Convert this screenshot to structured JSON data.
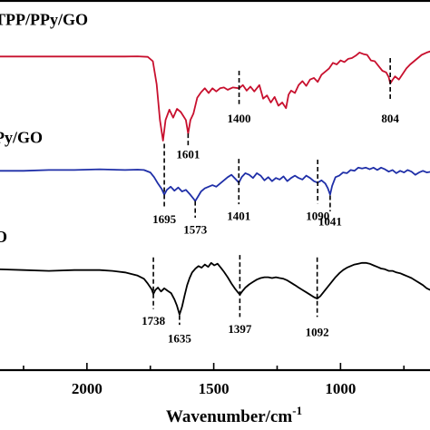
{
  "chart_data": {
    "type": "line",
    "xlabel": "Wavenumber/cm",
    "xlabel_superscript": "-1",
    "x_reversed": true,
    "xlim": [
      2350,
      640
    ],
    "x_ticks": [
      2000,
      1500,
      1000
    ],
    "x_tick_labels": [
      "2000",
      "1500",
      "1000"
    ],
    "series": [
      {
        "name": "TPP/PPy/GO",
        "color": "#c8102e",
        "points": [
          [
            2350,
            -1.0
          ],
          [
            2200,
            -1.0
          ],
          [
            2100,
            -1.0
          ],
          [
            2000,
            -1.0
          ],
          [
            1900,
            -1.0
          ],
          [
            1850,
            -1.0
          ],
          [
            1800,
            -0.98
          ],
          [
            1760,
            -1.05
          ],
          [
            1740,
            -1.6
          ],
          [
            1725,
            -4.5
          ],
          [
            1712,
            -9
          ],
          [
            1700,
            -11.6
          ],
          [
            1690,
            -9
          ],
          [
            1675,
            -7.7
          ],
          [
            1660,
            -8.7
          ],
          [
            1645,
            -7.6
          ],
          [
            1630,
            -8.0
          ],
          [
            1620,
            -8.5
          ],
          [
            1610,
            -9.0
          ],
          [
            1601,
            -10.7
          ],
          [
            1592,
            -9.0
          ],
          [
            1580,
            -8.2
          ],
          [
            1565,
            -6.2
          ],
          [
            1550,
            -5.5
          ],
          [
            1535,
            -5.0
          ],
          [
            1520,
            -5.6
          ],
          [
            1505,
            -5.0
          ],
          [
            1490,
            -5.4
          ],
          [
            1475,
            -5.0
          ],
          [
            1460,
            -4.9
          ],
          [
            1445,
            -5.2
          ],
          [
            1425,
            -4.9
          ],
          [
            1400,
            -5.0
          ],
          [
            1385,
            -4.6
          ],
          [
            1370,
            -5.3
          ],
          [
            1355,
            -4.8
          ],
          [
            1340,
            -5.4
          ],
          [
            1320,
            -4.6
          ],
          [
            1305,
            -6.3
          ],
          [
            1290,
            -5.9
          ],
          [
            1275,
            -6.8
          ],
          [
            1260,
            -6.1
          ],
          [
            1245,
            -7.2
          ],
          [
            1230,
            -6.8
          ],
          [
            1215,
            -7.5
          ],
          [
            1205,
            -5.8
          ],
          [
            1195,
            -5.3
          ],
          [
            1180,
            -5.6
          ],
          [
            1165,
            -4.6
          ],
          [
            1150,
            -4.1
          ],
          [
            1135,
            -4.7
          ],
          [
            1120,
            -3.9
          ],
          [
            1105,
            -3.7
          ],
          [
            1090,
            -4.2
          ],
          [
            1075,
            -3.3
          ],
          [
            1060,
            -2.9
          ],
          [
            1045,
            -2.5
          ],
          [
            1030,
            -1.8
          ],
          [
            1015,
            -2.0
          ],
          [
            1000,
            -1.5
          ],
          [
            985,
            -1.7
          ],
          [
            970,
            -1.3
          ],
          [
            955,
            -1.2
          ],
          [
            940,
            -0.9
          ],
          [
            925,
            -0.5
          ],
          [
            910,
            -0.7
          ],
          [
            895,
            -0.8
          ],
          [
            880,
            -1.5
          ],
          [
            865,
            -1.6
          ],
          [
            850,
            -2.2
          ],
          [
            835,
            -2.8
          ],
          [
            820,
            -3.0
          ],
          [
            810,
            -3.6
          ],
          [
            804,
            -4.4
          ],
          [
            796,
            -4.0
          ],
          [
            785,
            -3.5
          ],
          [
            770,
            -3.9
          ],
          [
            755,
            -3.2
          ],
          [
            740,
            -2.5
          ],
          [
            725,
            -2.0
          ],
          [
            710,
            -1.6
          ],
          [
            695,
            -1.2
          ],
          [
            680,
            -0.8
          ],
          [
            660,
            -0.5
          ],
          [
            640,
            -0.3
          ]
        ]
      },
      {
        "name": "PPy/GO",
        "color": "#1f2fa8",
        "points": [
          [
            2350,
            -15.4
          ],
          [
            2250,
            -15.4
          ],
          [
            2150,
            -15.3
          ],
          [
            2050,
            -15.3
          ],
          [
            1950,
            -15.2
          ],
          [
            1850,
            -15.3
          ],
          [
            1800,
            -15.25
          ],
          [
            1775,
            -15.3
          ],
          [
            1750,
            -15.6
          ],
          [
            1735,
            -16.2
          ],
          [
            1720,
            -17.0
          ],
          [
            1705,
            -17.7
          ],
          [
            1695,
            -18.4
          ],
          [
            1685,
            -17.8
          ],
          [
            1670,
            -17.4
          ],
          [
            1655,
            -17.9
          ],
          [
            1640,
            -17.5
          ],
          [
            1625,
            -18.0
          ],
          [
            1610,
            -17.8
          ],
          [
            1595,
            -18.3
          ],
          [
            1580,
            -18.9
          ],
          [
            1573,
            -19.2
          ],
          [
            1565,
            -18.8
          ],
          [
            1550,
            -18.0
          ],
          [
            1535,
            -17.6
          ],
          [
            1520,
            -17.4
          ],
          [
            1505,
            -17.2
          ],
          [
            1490,
            -17.4
          ],
          [
            1475,
            -17.0
          ],
          [
            1460,
            -16.6
          ],
          [
            1445,
            -16.2
          ],
          [
            1430,
            -15.9
          ],
          [
            1415,
            -16.4
          ],
          [
            1401,
            -16.9
          ],
          [
            1390,
            -16.2
          ],
          [
            1375,
            -15.7
          ],
          [
            1360,
            -15.9
          ],
          [
            1345,
            -16.3
          ],
          [
            1330,
            -15.7
          ],
          [
            1315,
            -16.0
          ],
          [
            1300,
            -16.6
          ],
          [
            1285,
            -16.2
          ],
          [
            1270,
            -16.7
          ],
          [
            1255,
            -16.3
          ],
          [
            1240,
            -16.5
          ],
          [
            1225,
            -16.1
          ],
          [
            1210,
            -16.7
          ],
          [
            1195,
            -16.3
          ],
          [
            1180,
            -16.0
          ],
          [
            1165,
            -16.3
          ],
          [
            1150,
            -16.5
          ],
          [
            1135,
            -16.0
          ],
          [
            1120,
            -16.3
          ],
          [
            1105,
            -16.7
          ],
          [
            1090,
            -16.9
          ],
          [
            1075,
            -16.6
          ],
          [
            1060,
            -17.0
          ],
          [
            1050,
            -17.6
          ],
          [
            1041,
            -18.4
          ],
          [
            1033,
            -17.3
          ],
          [
            1020,
            -16.2
          ],
          [
            1005,
            -16.0
          ],
          [
            990,
            -15.6
          ],
          [
            975,
            -15.7
          ],
          [
            960,
            -15.3
          ],
          [
            945,
            -15.4
          ],
          [
            930,
            -15.0
          ],
          [
            915,
            -15.1
          ],
          [
            900,
            -15.0
          ],
          [
            885,
            -15.2
          ],
          [
            870,
            -15.0
          ],
          [
            855,
            -15.3
          ],
          [
            840,
            -15.0
          ],
          [
            825,
            -15.2
          ],
          [
            810,
            -15.5
          ],
          [
            795,
            -15.3
          ],
          [
            780,
            -15.7
          ],
          [
            765,
            -15.4
          ],
          [
            750,
            -15.6
          ],
          [
            735,
            -15.3
          ],
          [
            720,
            -15.5
          ],
          [
            705,
            -15.9
          ],
          [
            690,
            -15.6
          ],
          [
            675,
            -15.4
          ],
          [
            660,
            -15.6
          ],
          [
            640,
            -15.5
          ]
        ]
      },
      {
        "name": "GO",
        "color": "#000000",
        "points": [
          [
            2350,
            -27.8
          ],
          [
            2250,
            -27.9
          ],
          [
            2150,
            -28.0
          ],
          [
            2050,
            -27.9
          ],
          [
            1950,
            -27.9
          ],
          [
            1900,
            -28.0
          ],
          [
            1850,
            -28.2
          ],
          [
            1800,
            -28.6
          ],
          [
            1775,
            -29.0
          ],
          [
            1760,
            -29.6
          ],
          [
            1745,
            -30.3
          ],
          [
            1738,
            -30.9
          ],
          [
            1730,
            -30.4
          ],
          [
            1720,
            -30.1
          ],
          [
            1708,
            -30.6
          ],
          [
            1695,
            -30.2
          ],
          [
            1682,
            -30.5
          ],
          [
            1668,
            -30.8
          ],
          [
            1655,
            -31.6
          ],
          [
            1645,
            -32.4
          ],
          [
            1635,
            -33.5
          ],
          [
            1625,
            -32.5
          ],
          [
            1615,
            -31.1
          ],
          [
            1605,
            -29.8
          ],
          [
            1595,
            -28.9
          ],
          [
            1585,
            -28.2
          ],
          [
            1572,
            -27.7
          ],
          [
            1560,
            -27.4
          ],
          [
            1548,
            -27.6
          ],
          [
            1535,
            -27.2
          ],
          [
            1522,
            -27.5
          ],
          [
            1510,
            -27.0
          ],
          [
            1498,
            -27.3
          ],
          [
            1485,
            -27.1
          ],
          [
            1472,
            -27.6
          ],
          [
            1460,
            -28.1
          ],
          [
            1445,
            -28.8
          ],
          [
            1430,
            -29.6
          ],
          [
            1415,
            -30.3
          ],
          [
            1405,
            -30.7
          ],
          [
            1397,
            -31.0
          ],
          [
            1388,
            -30.6
          ],
          [
            1375,
            -30.1
          ],
          [
            1360,
            -29.7
          ],
          [
            1345,
            -29.4
          ],
          [
            1330,
            -29.1
          ],
          [
            1315,
            -28.9
          ],
          [
            1300,
            -28.8
          ],
          [
            1285,
            -28.8
          ],
          [
            1270,
            -28.9
          ],
          [
            1255,
            -28.8
          ],
          [
            1240,
            -28.9
          ],
          [
            1225,
            -29.0
          ],
          [
            1210,
            -29.2
          ],
          [
            1195,
            -29.5
          ],
          [
            1180,
            -29.8
          ],
          [
            1165,
            -30.1
          ],
          [
            1150,
            -30.4
          ],
          [
            1135,
            -30.7
          ],
          [
            1120,
            -31.0
          ],
          [
            1105,
            -31.3
          ],
          [
            1092,
            -31.5
          ],
          [
            1080,
            -31.2
          ],
          [
            1065,
            -30.6
          ],
          [
            1050,
            -30.0
          ],
          [
            1035,
            -29.4
          ],
          [
            1020,
            -28.8
          ],
          [
            1005,
            -28.3
          ],
          [
            990,
            -27.9
          ],
          [
            975,
            -27.6
          ],
          [
            960,
            -27.4
          ],
          [
            945,
            -27.2
          ],
          [
            930,
            -27.1
          ],
          [
            915,
            -27.0
          ],
          [
            900,
            -27.0
          ],
          [
            885,
            -27.1
          ],
          [
            870,
            -27.3
          ],
          [
            855,
            -27.5
          ],
          [
            840,
            -27.7
          ],
          [
            825,
            -27.8
          ],
          [
            810,
            -28.0
          ],
          [
            795,
            -28.0
          ],
          [
            780,
            -28.2
          ],
          [
            765,
            -28.3
          ],
          [
            750,
            -28.5
          ],
          [
            735,
            -28.7
          ],
          [
            720,
            -28.9
          ],
          [
            705,
            -29.2
          ],
          [
            690,
            -29.5
          ],
          [
            675,
            -29.8
          ],
          [
            660,
            -30.2
          ],
          [
            640,
            -30.5
          ]
        ]
      }
    ],
    "series_labels": [
      {
        "text": "TPP/PPy/GO",
        "x": 2350,
        "y": 3.0
      },
      {
        "text": "Py/GO",
        "x": 2350,
        "y": -11.9
      },
      {
        "text": "O",
        "x": 2350,
        "y": -24.4
      }
    ],
    "peak_markers": [
      {
        "label": "1400",
        "x": 1400,
        "y_top": -2.8,
        "y_bottom": -7.0,
        "label_y": -9.3
      },
      {
        "label": "804",
        "x": 804,
        "y_top": -1.2,
        "y_bottom": -6.5,
        "label_y": -9.3
      },
      {
        "label": "1601",
        "x": 1601,
        "y_top": -10.7,
        "y_bottom": -12.2,
        "label_y": -13.8
      },
      {
        "label": "1695",
        "x": 1695,
        "y_top": -12.0,
        "y_bottom": -20.2,
        "label_y": -22.0
      },
      {
        "label": "1573",
        "x": 1573,
        "y_top": -19.2,
        "y_bottom": -21.3,
        "label_y": -23.3
      },
      {
        "label": "1401",
        "x": 1401,
        "y_top": -13.9,
        "y_bottom": -19.6,
        "label_y": -21.6
      },
      {
        "label": "1090",
        "x": 1090,
        "y_top": -14.0,
        "y_bottom": -19.5,
        "label_y": -21.6
      },
      {
        "label": "1041",
        "x": 1041,
        "y_top": -18.5,
        "y_bottom": -20.5,
        "label_y": -22.3
      },
      {
        "label": "1738",
        "x": 1738,
        "y_top": -26.3,
        "y_bottom": -32.8,
        "label_y": -34.8
      },
      {
        "label": "1635",
        "x": 1635,
        "y_top": -33.6,
        "y_bottom": -34.8,
        "label_y": -37.0
      },
      {
        "label": "1397",
        "x": 1397,
        "y_top": -26.0,
        "y_bottom": -33.8,
        "label_y": -35.8
      },
      {
        "label": "1092",
        "x": 1092,
        "y_top": -26.3,
        "y_bottom": -33.8,
        "label_y": -36.2
      }
    ],
    "ylim": [
      -40.5,
      6.0
    ],
    "y_ticks_shown": false,
    "grid": false
  }
}
